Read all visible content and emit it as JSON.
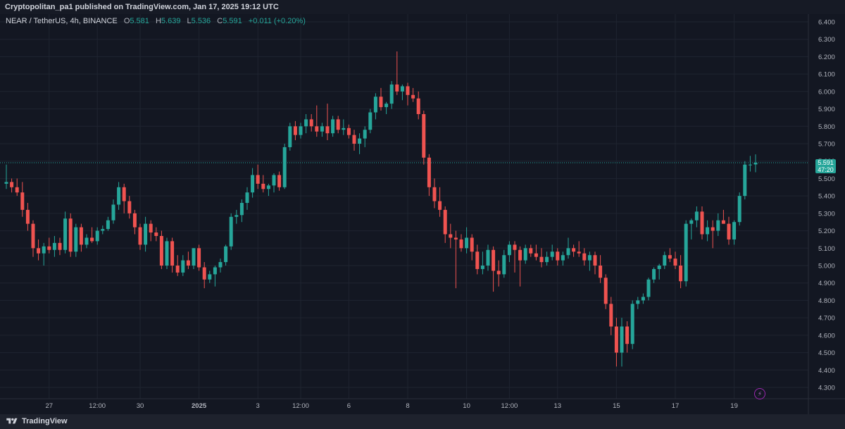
{
  "header": {
    "published_by": "Cryptopolitan_pa1 published on TradingView.com, Jan 17, 2025 19:12 UTC"
  },
  "legend": {
    "symbol": "NEAR / TetherUS, 4h, BINANCE",
    "o_label": "O",
    "o_value": "5.581",
    "h_label": "H",
    "h_value": "5.639",
    "l_label": "L",
    "l_value": "5.536",
    "c_label": "C",
    "c_value": "5.591",
    "change": "+0.011 (+0.20%)"
  },
  "price_tag": {
    "price": "5.591",
    "countdown": "47:20"
  },
  "footer": {
    "brand": "TradingView"
  },
  "colors": {
    "up": "#26a69a",
    "down": "#ef5350",
    "grid": "#1f2430",
    "text": "#b2b5be"
  },
  "chart_data": {
    "type": "candlestick",
    "y_axis": {
      "range": [
        4.25,
        6.45
      ],
      "ticks": [
        "6.400",
        "6.300",
        "6.200",
        "6.100",
        "6.000",
        "5.900",
        "5.800",
        "5.700",
        "5.600",
        "5.500",
        "5.400",
        "5.300",
        "5.200",
        "5.100",
        "5.000",
        "4.900",
        "4.800",
        "4.700",
        "4.600",
        "4.500",
        "4.400",
        "4.300"
      ],
      "position": "right"
    },
    "x_axis": {
      "ticks": [
        {
          "label": "27",
          "bar": 8
        },
        {
          "label": "12:00",
          "bar": 17
        },
        {
          "label": "30",
          "bar": 25
        },
        {
          "label": "2025",
          "bar": 36
        },
        {
          "label": "3",
          "bar": 47
        },
        {
          "label": "12:00",
          "bar": 55
        },
        {
          "label": "6",
          "bar": 64
        },
        {
          "label": "8",
          "bar": 75
        },
        {
          "label": "10",
          "bar": 86
        },
        {
          "label": "12:00",
          "bar": 94
        },
        {
          "label": "13",
          "bar": 103
        },
        {
          "label": "15",
          "bar": 114
        },
        {
          "label": "17",
          "bar": 125
        },
        {
          "label": "19",
          "bar": 136
        }
      ]
    },
    "grid": true,
    "last_price": 5.591,
    "ohlc": [
      [
        5.47,
        5.58,
        5.44,
        5.48
      ],
      [
        5.48,
        5.5,
        5.42,
        5.45
      ],
      [
        5.45,
        5.5,
        5.4,
        5.42
      ],
      [
        5.42,
        5.48,
        5.28,
        5.32
      ],
      [
        5.32,
        5.36,
        5.2,
        5.24
      ],
      [
        5.24,
        5.26,
        5.05,
        5.1
      ],
      [
        5.1,
        5.15,
        5.03,
        5.07
      ],
      [
        5.07,
        5.13,
        5.0,
        5.11
      ],
      [
        5.11,
        5.16,
        5.07,
        5.09
      ],
      [
        5.09,
        5.17,
        5.05,
        5.13
      ],
      [
        5.13,
        5.16,
        5.06,
        5.09
      ],
      [
        5.09,
        5.31,
        5.07,
        5.27
      ],
      [
        5.27,
        5.3,
        5.05,
        5.08
      ],
      [
        5.08,
        5.24,
        5.05,
        5.22
      ],
      [
        5.22,
        5.24,
        5.08,
        5.12
      ],
      [
        5.12,
        5.18,
        5.1,
        5.16
      ],
      [
        5.16,
        5.22,
        5.13,
        5.14
      ],
      [
        5.14,
        5.22,
        5.12,
        5.2
      ],
      [
        5.2,
        5.23,
        5.18,
        5.21
      ],
      [
        5.21,
        5.28,
        5.2,
        5.26
      ],
      [
        5.26,
        5.38,
        5.24,
        5.35
      ],
      [
        5.35,
        5.48,
        5.32,
        5.45
      ],
      [
        5.45,
        5.47,
        5.3,
        5.37
      ],
      [
        5.37,
        5.4,
        5.27,
        5.3
      ],
      [
        5.3,
        5.32,
        5.18,
        5.22
      ],
      [
        5.22,
        5.24,
        5.09,
        5.12
      ],
      [
        5.12,
        5.28,
        5.08,
        5.24
      ],
      [
        5.24,
        5.26,
        5.14,
        5.19
      ],
      [
        5.19,
        5.22,
        5.14,
        5.17
      ],
      [
        5.17,
        5.2,
        4.98,
        5.0
      ],
      [
        5.0,
        5.16,
        4.98,
        5.14
      ],
      [
        5.14,
        5.16,
        4.96,
        5.0
      ],
      [
        5.0,
        5.06,
        4.94,
        4.96
      ],
      [
        4.96,
        5.06,
        4.94,
        5.03
      ],
      [
        5.03,
        5.08,
        4.98,
        5.0
      ],
      [
        5.0,
        5.1,
        4.98,
        5.1
      ],
      [
        5.1,
        5.12,
        4.97,
        4.99
      ],
      [
        4.99,
        5.02,
        4.87,
        4.92
      ],
      [
        4.92,
        4.97,
        4.9,
        4.95
      ],
      [
        4.95,
        5.0,
        4.88,
        4.99
      ],
      [
        4.99,
        5.04,
        4.96,
        5.02
      ],
      [
        5.02,
        5.12,
        5.0,
        5.11
      ],
      [
        5.11,
        5.3,
        5.09,
        5.28
      ],
      [
        5.28,
        5.32,
        5.24,
        5.29
      ],
      [
        5.29,
        5.38,
        5.25,
        5.36
      ],
      [
        5.36,
        5.45,
        5.32,
        5.42
      ],
      [
        5.42,
        5.56,
        5.39,
        5.52
      ],
      [
        5.52,
        5.58,
        5.44,
        5.47
      ],
      [
        5.47,
        5.52,
        5.42,
        5.44
      ],
      [
        5.44,
        5.47,
        5.4,
        5.46
      ],
      [
        5.46,
        5.53,
        5.42,
        5.52
      ],
      [
        5.52,
        5.54,
        5.43,
        5.45
      ],
      [
        5.45,
        5.7,
        5.44,
        5.68
      ],
      [
        5.68,
        5.82,
        5.66,
        5.8
      ],
      [
        5.8,
        5.83,
        5.72,
        5.75
      ],
      [
        5.75,
        5.82,
        5.73,
        5.8
      ],
      [
        5.8,
        5.87,
        5.76,
        5.84
      ],
      [
        5.84,
        5.87,
        5.77,
        5.8
      ],
      [
        5.8,
        5.92,
        5.74,
        5.77
      ],
      [
        5.77,
        5.82,
        5.74,
        5.8
      ],
      [
        5.8,
        5.93,
        5.72,
        5.76
      ],
      [
        5.76,
        5.86,
        5.74,
        5.84
      ],
      [
        5.84,
        5.86,
        5.76,
        5.78
      ],
      [
        5.78,
        5.84,
        5.75,
        5.79
      ],
      [
        5.79,
        5.81,
        5.73,
        5.75
      ],
      [
        5.75,
        5.78,
        5.66,
        5.7
      ],
      [
        5.7,
        5.76,
        5.64,
        5.73
      ],
      [
        5.73,
        5.8,
        5.68,
        5.78
      ],
      [
        5.78,
        5.9,
        5.76,
        5.88
      ],
      [
        5.88,
        5.99,
        5.84,
        5.97
      ],
      [
        5.97,
        6.02,
        5.89,
        5.91
      ],
      [
        5.91,
        5.94,
        5.87,
        5.93
      ],
      [
        5.93,
        6.06,
        5.9,
        6.04
      ],
      [
        6.04,
        6.23,
        5.98,
        6.0
      ],
      [
        6.0,
        6.04,
        5.95,
        6.03
      ],
      [
        6.03,
        6.05,
        5.92,
        5.98
      ],
      [
        5.98,
        6.02,
        5.94,
        5.96
      ],
      [
        5.96,
        6.0,
        5.84,
        5.87
      ],
      [
        5.87,
        5.89,
        5.58,
        5.62
      ],
      [
        5.62,
        5.64,
        5.4,
        5.45
      ],
      [
        5.45,
        5.5,
        5.33,
        5.37
      ],
      [
        5.37,
        5.45,
        5.28,
        5.32
      ],
      [
        5.32,
        5.34,
        5.13,
        5.18
      ],
      [
        5.18,
        5.24,
        5.1,
        5.16
      ],
      [
        5.16,
        5.2,
        4.87,
        5.15
      ],
      [
        5.15,
        5.18,
        5.08,
        5.1
      ],
      [
        5.1,
        5.22,
        5.07,
        5.16
      ],
      [
        5.16,
        5.18,
        5.03,
        5.08
      ],
      [
        5.08,
        5.12,
        4.95,
        4.98
      ],
      [
        4.98,
        5.08,
        4.95,
        5.0
      ],
      [
        5.0,
        5.12,
        4.97,
        5.09
      ],
      [
        5.09,
        5.11,
        4.85,
        4.97
      ],
      [
        4.97,
        5.03,
        4.88,
        4.95
      ],
      [
        4.95,
        5.09,
        4.93,
        5.06
      ],
      [
        5.06,
        5.14,
        5.02,
        5.12
      ],
      [
        5.12,
        5.14,
        4.96,
        5.09
      ],
      [
        5.09,
        5.11,
        4.88,
        5.03
      ],
      [
        5.03,
        5.12,
        5.01,
        5.1
      ],
      [
        5.1,
        5.12,
        5.05,
        5.07
      ],
      [
        5.07,
        5.12,
        5.03,
        5.05
      ],
      [
        5.05,
        5.1,
        4.99,
        5.02
      ],
      [
        5.02,
        5.08,
        5.0,
        5.05
      ],
      [
        5.05,
        5.12,
        5.03,
        5.08
      ],
      [
        5.08,
        5.1,
        5.0,
        5.03
      ],
      [
        5.03,
        5.08,
        5.0,
        5.06
      ],
      [
        5.06,
        5.16,
        5.04,
        5.1
      ],
      [
        5.1,
        5.12,
        5.05,
        5.08
      ],
      [
        5.08,
        5.14,
        5.05,
        5.07
      ],
      [
        5.07,
        5.1,
        5.0,
        5.03
      ],
      [
        5.03,
        5.08,
        4.97,
        5.06
      ],
      [
        5.06,
        5.08,
        4.95,
        5.0
      ],
      [
        5.0,
        5.06,
        4.9,
        4.93
      ],
      [
        4.93,
        4.95,
        4.75,
        4.78
      ],
      [
        4.78,
        4.82,
        4.6,
        4.65
      ],
      [
        4.65,
        4.7,
        4.42,
        4.5
      ],
      [
        4.5,
        4.7,
        4.42,
        4.65
      ],
      [
        4.65,
        4.68,
        4.5,
        4.55
      ],
      [
        4.55,
        4.8,
        4.52,
        4.78
      ],
      [
        4.78,
        4.82,
        4.75,
        4.8
      ],
      [
        4.8,
        4.84,
        4.78,
        4.82
      ],
      [
        4.82,
        4.93,
        4.8,
        4.92
      ],
      [
        4.92,
        4.99,
        4.9,
        4.98
      ],
      [
        4.98,
        5.01,
        4.92,
        5.0
      ],
      [
        5.0,
        5.08,
        4.98,
        5.06
      ],
      [
        5.06,
        5.1,
        5.02,
        5.04
      ],
      [
        5.04,
        5.08,
        4.98,
        5.0
      ],
      [
        5.0,
        5.06,
        4.87,
        4.91
      ],
      [
        4.91,
        5.26,
        4.88,
        5.24
      ],
      [
        5.24,
        5.27,
        5.15,
        5.26
      ],
      [
        5.26,
        5.34,
        5.22,
        5.31
      ],
      [
        5.31,
        5.34,
        5.15,
        5.18
      ],
      [
        5.18,
        5.26,
        5.14,
        5.22
      ],
      [
        5.22,
        5.26,
        5.1,
        5.2
      ],
      [
        5.2,
        5.3,
        5.17,
        5.26
      ],
      [
        5.26,
        5.32,
        5.24,
        5.24
      ],
      [
        5.24,
        5.28,
        5.12,
        5.15
      ],
      [
        5.15,
        5.26,
        5.12,
        5.25
      ],
      [
        5.25,
        5.42,
        5.23,
        5.4
      ],
      [
        5.4,
        5.6,
        5.38,
        5.58
      ],
      [
        5.58,
        5.63,
        5.54,
        5.58
      ],
      [
        5.581,
        5.639,
        5.536,
        5.591
      ]
    ]
  }
}
